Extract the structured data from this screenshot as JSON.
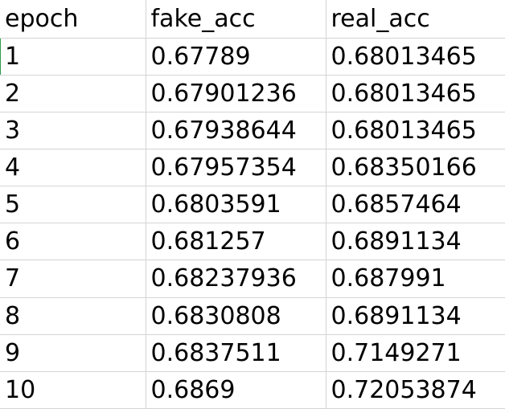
{
  "sheet": {
    "columns": [
      "epoch",
      "fake_acc",
      "real_acc"
    ],
    "rows": [
      [
        "1",
        "0.67789",
        "0.68013465"
      ],
      [
        "2",
        "0.67901236",
        "0.68013465"
      ],
      [
        "3",
        "0.67938644",
        "0.68013465"
      ],
      [
        "4",
        "0.67957354",
        "0.68350166"
      ],
      [
        "5",
        "0.6803591",
        "0.6857464"
      ],
      [
        "6",
        "0.681257",
        "0.6891134"
      ],
      [
        "7",
        "0.68237936",
        "0.687991"
      ],
      [
        "8",
        "0.6830808",
        "0.6891134"
      ],
      [
        "9",
        "0.6837511",
        "0.7149271"
      ],
      [
        "10",
        "0.6869",
        "0.72053874"
      ]
    ]
  }
}
